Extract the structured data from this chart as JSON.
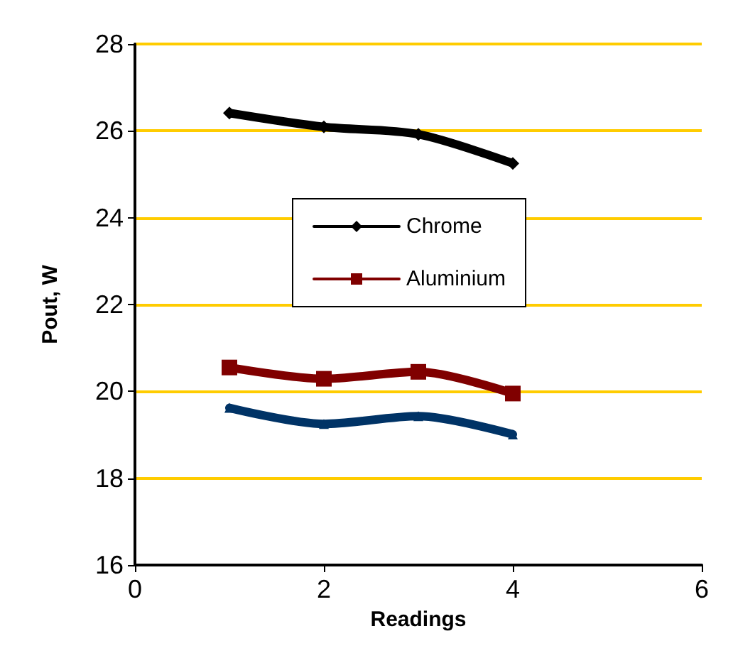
{
  "chart_data": {
    "type": "line",
    "xlabel": "Readings",
    "ylabel": "Pout, W",
    "x": [
      1,
      2,
      3,
      4
    ],
    "series": [
      {
        "name": "Chrome",
        "color": "#000000",
        "marker": "diamond",
        "values": [
          26.41,
          26.09,
          25.92,
          25.25
        ]
      },
      {
        "name": "Aluminium",
        "color": "#800000",
        "marker": "square",
        "values": [
          20.55,
          20.29,
          20.45,
          19.95
        ]
      },
      {
        "color": "#003366",
        "marker": "triangle",
        "values": [
          19.62,
          19.25,
          19.43,
          19.01
        ]
      }
    ],
    "xlim": [
      0,
      6
    ],
    "xticks": [
      0,
      2,
      4,
      6
    ],
    "ylim": [
      16,
      28
    ],
    "yticks": [
      16,
      18,
      20,
      22,
      24,
      26,
      28
    ],
    "grid": "y",
    "legend": "center",
    "line_style": "solid"
  }
}
